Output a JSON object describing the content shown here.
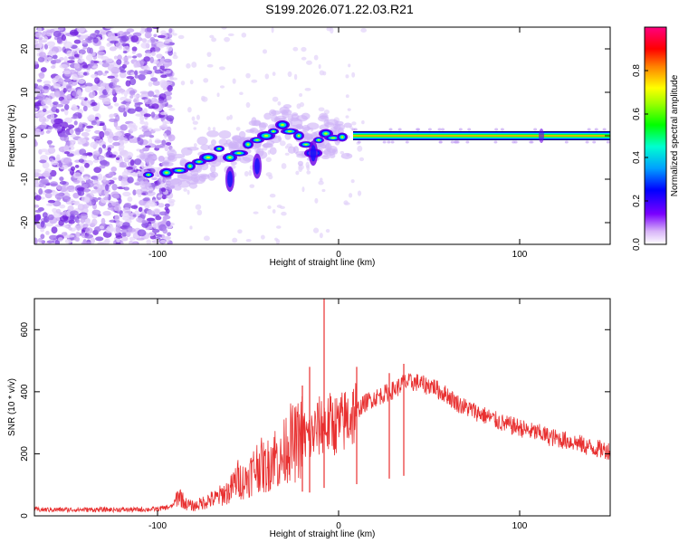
{
  "title": "S199.2026.071.22.03.R21",
  "chart_data": [
    {
      "type": "heatmap",
      "name": "spectrogram",
      "xlabel": "Height of straight line (km)",
      "ylabel": "Frequency (Hz)",
      "xlim": [
        -168,
        150
      ],
      "ylim": [
        -25,
        25
      ],
      "xticks": [
        -100,
        0,
        100
      ],
      "xtick_labels": [
        "-100",
        "0",
        "100"
      ],
      "yticks": [
        -20,
        -10,
        0,
        10,
        20
      ],
      "ytick_labels": [
        "-20",
        "-10",
        "0",
        "10",
        "20"
      ],
      "colorbar": {
        "label": "Normalized spectral amplitude",
        "range": [
          0,
          1
        ],
        "ticks": [
          0.0,
          0.2,
          0.4,
          0.6,
          0.8
        ],
        "tick_labels": [
          "0.0",
          "0.2",
          "0.4",
          "0.6",
          "0.8"
        ]
      },
      "features": {
        "noise_region_x": [
          -168,
          -96
        ],
        "carrier_start_x": 8,
        "carrier_freq": 0,
        "ridge_points": [
          {
            "x": -105,
            "y": -9
          },
          {
            "x": -95,
            "y": -8.5
          },
          {
            "x": -88,
            "y": -8
          },
          {
            "x": -82,
            "y": -7
          },
          {
            "x": -77,
            "y": -6
          },
          {
            "x": -72,
            "y": -5
          },
          {
            "x": -66,
            "y": -3
          },
          {
            "x": -60,
            "y": -5
          },
          {
            "x": -55,
            "y": -4
          },
          {
            "x": -50,
            "y": -2
          },
          {
            "x": -45,
            "y": -1
          },
          {
            "x": -40,
            "y": 0
          },
          {
            "x": -36,
            "y": 1
          },
          {
            "x": -31,
            "y": 2.5
          },
          {
            "x": -27,
            "y": 1
          },
          {
            "x": -22,
            "y": 0
          },
          {
            "x": -18,
            "y": -2
          },
          {
            "x": -14,
            "y": -4
          },
          {
            "x": -11,
            "y": -1
          },
          {
            "x": -7,
            "y": 0.5
          },
          {
            "x": -3,
            "y": -0.5
          },
          {
            "x": 2,
            "y": -0.3
          }
        ]
      }
    },
    {
      "type": "line",
      "name": "snr",
      "xlabel": "Height of straight line (km)",
      "ylabel": "SNR (10 * v/v)",
      "xlim": [
        -168,
        150
      ],
      "ylim": [
        0,
        700
      ],
      "xticks": [
        -100,
        0,
        100
      ],
      "xtick_labels": [
        "-100",
        "0",
        "100"
      ],
      "yticks": [
        0,
        200,
        400,
        600
      ],
      "ytick_labels": [
        "0",
        "200",
        "400",
        "600"
      ],
      "series": [
        {
          "name": "SNR",
          "color": "#e83030",
          "x": [
            -168,
            -150,
            -130,
            -110,
            -100,
            -92,
            -88,
            -85,
            -80,
            -76,
            -72,
            -68,
            -64,
            -60,
            -56,
            -52,
            -48,
            -44,
            -40,
            -36,
            -32,
            -28,
            -24,
            -20,
            -16,
            -12,
            -8,
            -6,
            -4,
            0,
            4,
            8,
            12,
            16,
            20,
            24,
            28,
            32,
            36,
            40,
            44,
            48,
            52,
            56,
            60,
            64,
            68,
            72,
            76,
            80,
            84,
            88,
            92,
            96,
            100,
            104,
            108,
            112,
            116,
            120,
            124,
            128,
            132,
            136,
            140,
            144,
            150
          ],
          "values": [
            20,
            20,
            20,
            20,
            22,
            30,
            70,
            40,
            30,
            40,
            50,
            55,
            70,
            80,
            120,
            110,
            140,
            170,
            150,
            200,
            170,
            240,
            230,
            260,
            250,
            280,
            300,
            290,
            300,
            290,
            310,
            330,
            350,
            370,
            380,
            390,
            400,
            410,
            430,
            430,
            430,
            420,
            420,
            400,
            390,
            370,
            355,
            345,
            335,
            325,
            315,
            305,
            295,
            290,
            285,
            275,
            270,
            265,
            255,
            250,
            245,
            240,
            235,
            225,
            220,
            215,
            210
          ]
        }
      ],
      "spikes": [
        {
          "x": -20,
          "y": 420
        },
        {
          "x": -16,
          "y": 480
        },
        {
          "x": -8,
          "y": 700
        },
        {
          "x": 10,
          "y": 480
        },
        {
          "x": 28,
          "y": 460
        },
        {
          "x": 36,
          "y": 490
        }
      ]
    }
  ]
}
